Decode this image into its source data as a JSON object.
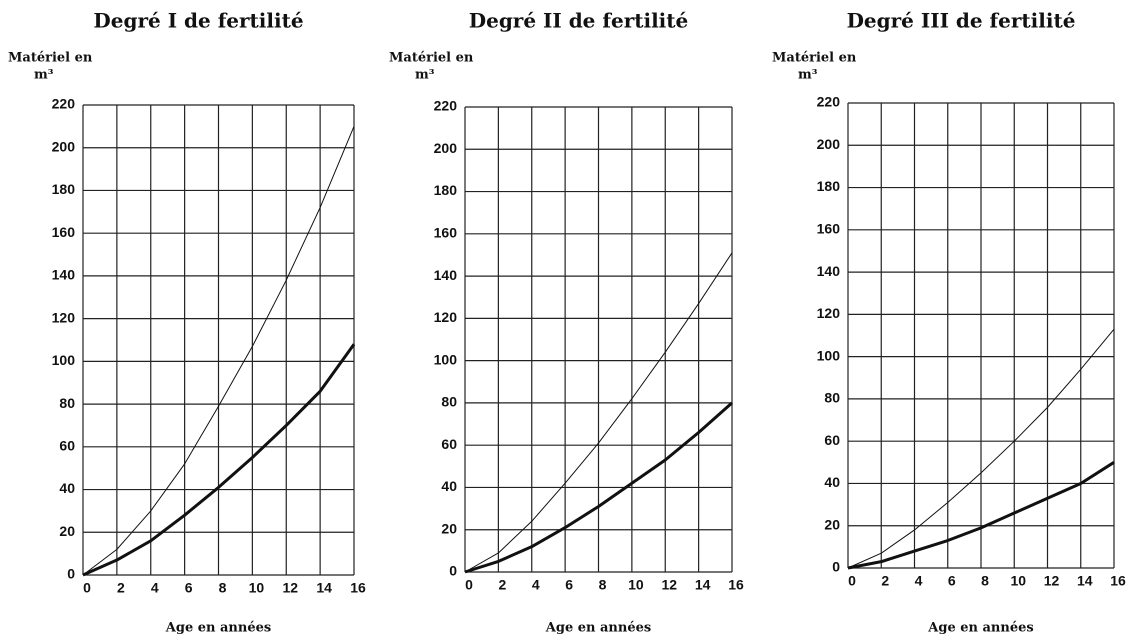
{
  "chart_data": [
    {
      "type": "line",
      "title": "Degré I de fertilité",
      "ylabel": [
        "Matériel en",
        "m³"
      ],
      "xlabel": "Age en années",
      "x": [
        0,
        2,
        4,
        6,
        8,
        10,
        12,
        14,
        16
      ],
      "series": [
        {
          "color": "#111111",
          "width": 1,
          "values": [
            0,
            12,
            30,
            52,
            79,
            107,
            138,
            172,
            210
          ]
        },
        {
          "color": "#111111",
          "width": 3,
          "values": [
            0,
            7,
            16,
            28,
            41,
            55,
            70,
            86,
            108
          ]
        }
      ],
      "xlim": [
        0,
        16
      ],
      "xticks": [
        0,
        2,
        4,
        6,
        8,
        10,
        12,
        14,
        16
      ],
      "ylim": [
        0,
        220
      ],
      "yticks": [
        0,
        20,
        40,
        60,
        80,
        100,
        120,
        140,
        160,
        180,
        200,
        220
      ],
      "grid": true
    },
    {
      "type": "line",
      "title": "Degré II de fertilité",
      "ylabel": [
        "Matériel en",
        "m³"
      ],
      "xlabel": "Age en années",
      "x": [
        0,
        2,
        4,
        6,
        8,
        10,
        12,
        14,
        16
      ],
      "series": [
        {
          "color": "#111111",
          "width": 1,
          "values": [
            0,
            9,
            24,
            42,
            61,
            82,
            104,
            127,
            151
          ]
        },
        {
          "color": "#111111",
          "width": 3,
          "values": [
            0,
            5,
            12,
            21,
            31,
            42,
            53,
            66,
            80
          ]
        }
      ],
      "xlim": [
        0,
        16
      ],
      "xticks": [
        0,
        2,
        4,
        6,
        8,
        10,
        12,
        14,
        16
      ],
      "ylim": [
        0,
        220
      ],
      "yticks": [
        0,
        20,
        40,
        60,
        80,
        100,
        120,
        140,
        160,
        180,
        200,
        220
      ],
      "grid": true
    },
    {
      "type": "line",
      "title": "Degré III de fertilité",
      "ylabel": [
        "Matériel en",
        "m³"
      ],
      "xlabel": "Age en années",
      "x": [
        0,
        2,
        4,
        6,
        8,
        10,
        12,
        14,
        16
      ],
      "series": [
        {
          "color": "#111111",
          "width": 1,
          "values": [
            0,
            7,
            18,
            31,
            45,
            60,
            76,
            94,
            113
          ]
        },
        {
          "color": "#111111",
          "width": 3,
          "values": [
            0,
            3,
            8,
            13,
            19,
            26,
            33,
            40,
            50
          ]
        }
      ],
      "xlim": [
        0,
        16
      ],
      "xticks": [
        0,
        2,
        4,
        6,
        8,
        10,
        12,
        14,
        16
      ],
      "ylim": [
        0,
        220
      ],
      "yticks": [
        0,
        20,
        40,
        60,
        80,
        100,
        120,
        140,
        160,
        180,
        200,
        220
      ],
      "grid": true
    }
  ]
}
